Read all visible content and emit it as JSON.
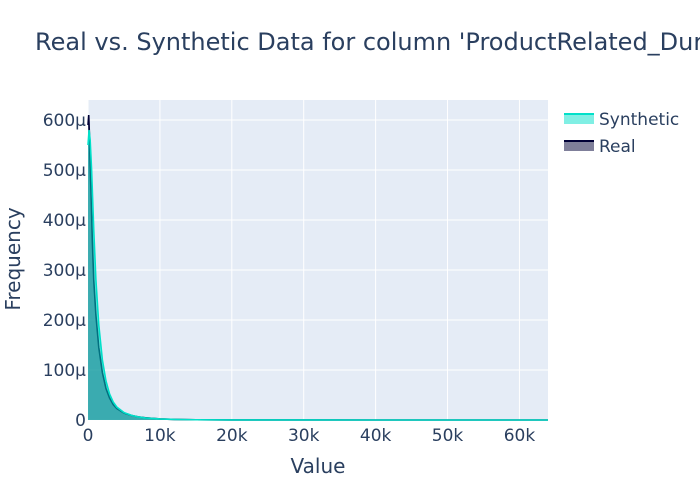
{
  "chart_data": {
    "type": "area",
    "title": "Real vs. Synthetic Data for column 'ProductRelated_Duration'",
    "xlabel": "Value",
    "ylabel": "Frequency",
    "xlim": [
      0,
      63973
    ],
    "ylim": [
      0,
      0.00064
    ],
    "grid": true,
    "legend_position": "top-right",
    "x_ticks": [
      0,
      10000,
      20000,
      30000,
      40000,
      50000,
      60000
    ],
    "x_tick_labels": [
      "0",
      "10k",
      "20k",
      "30k",
      "40k",
      "50k",
      "60k"
    ],
    "y_ticks": [
      0,
      0.0001,
      0.0002,
      0.0003,
      0.0004,
      0.0005,
      0.0006
    ],
    "y_tick_labels": [
      "0",
      "100μ",
      "200μ",
      "300μ",
      "400μ",
      "500μ",
      "600μ"
    ],
    "series": [
      {
        "name": "Synthetic",
        "color": "#01e0c9",
        "x": [
          0,
          150,
          300,
          500,
          800,
          1100,
          1500,
          2000,
          2500,
          3000,
          3500,
          4000,
          5000,
          6000,
          7000,
          8000,
          10000,
          12000,
          15000,
          20000,
          30000,
          40000,
          50000,
          63973
        ],
        "y": [
          0.00055,
          0.00058,
          0.00056,
          0.0005,
          0.00038,
          0.00028,
          0.00019,
          0.00012,
          7.8e-05,
          5.2e-05,
          3.6e-05,
          2.6e-05,
          1.5e-05,
          9.5e-06,
          6.2e-06,
          4.2e-06,
          2.1e-06,
          1.1e-06,
          5e-07,
          2e-07,
          5e-08,
          2e-08,
          1e-08,
          0
        ]
      },
      {
        "name": "Real",
        "color": "#000036",
        "x": [
          0,
          100,
          200,
          300,
          450,
          600,
          800,
          1100,
          1500,
          2000,
          2500,
          3000,
          3500,
          4000,
          5000,
          6000,
          7000,
          8000,
          10000,
          12000,
          15000,
          20000,
          30000,
          40000,
          50000,
          63973
        ],
        "y": [
          0.00059,
          0.00061,
          0.00057,
          0.00051,
          0.00044,
          0.00036,
          0.00028,
          0.00021,
          0.000145,
          9.5e-05,
          6.3e-05,
          4.4e-05,
          3.1e-05,
          2.3e-05,
          1.4e-05,
          9.2e-06,
          6.2e-06,
          4.3e-06,
          2.2e-06,
          1.2e-06,
          5e-07,
          2e-07,
          6e-08,
          2e-08,
          1e-08,
          0
        ]
      }
    ]
  }
}
